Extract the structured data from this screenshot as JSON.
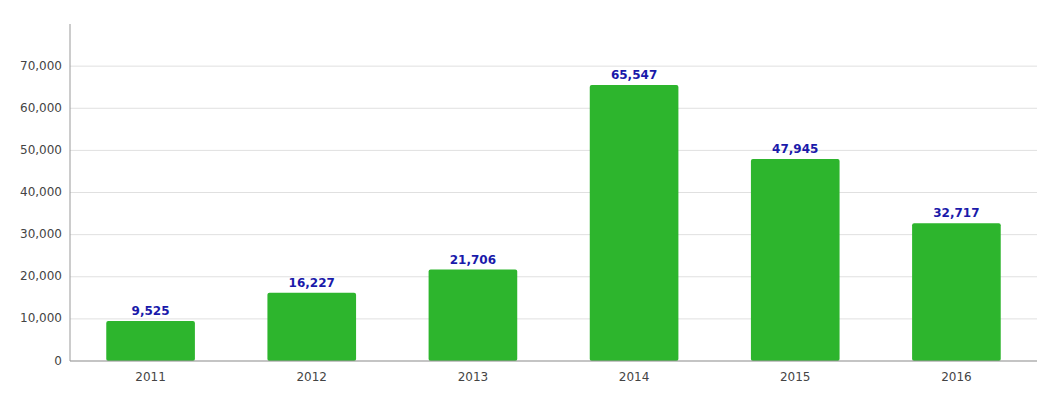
{
  "chart_data": {
    "type": "bar",
    "categories": [
      "2011",
      "2012",
      "2013",
      "2014",
      "2015",
      "2016"
    ],
    "values": [
      9525,
      16227,
      21706,
      65547,
      47945,
      32717
    ],
    "value_labels": [
      "9,525",
      "16,227",
      "21,706",
      "65,547",
      "47,945",
      "32,717"
    ],
    "color": "#2db52d",
    "ylim": [
      0,
      80000
    ],
    "yticks": [
      0,
      {
        "value": 10000,
        "label": "10,000"
      },
      {
        "value": 20000,
        "label": "20,000"
      },
      {
        "value": 30000,
        "label": "30,000"
      },
      {
        "value": 40000,
        "label": "40,000"
      },
      {
        "value": 50000,
        "label": "50,000"
      },
      {
        "value": 60000,
        "label": "60,000"
      },
      {
        "value": 70000,
        "label": "70,000"
      }
    ],
    "grid": true,
    "data_labels": true
  }
}
